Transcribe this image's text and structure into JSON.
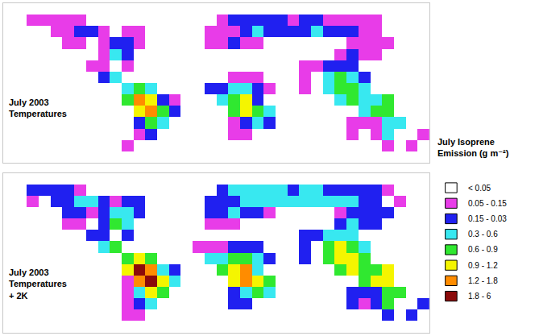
{
  "chart_data": [
    {
      "type": "heatmap",
      "title": [
        "July 2003",
        "Temperatures"
      ],
      "x": [
        -175,
        -165,
        -155,
        -145,
        -135,
        -125,
        -115,
        -105,
        -95,
        -85,
        -75,
        -65,
        -55,
        -45,
        -35,
        -25,
        -15,
        -5,
        5,
        15,
        25,
        35,
        45,
        55,
        65,
        75,
        85,
        95,
        105,
        115,
        125,
        135,
        145,
        155,
        165,
        175
      ],
      "y": [
        75,
        65,
        55,
        45,
        35,
        25,
        15,
        5,
        -5,
        -15,
        -25,
        -35,
        -45,
        -55
      ],
      "xlim": [
        -180,
        180
      ],
      "ylim": [
        -60,
        80
      ],
      "tick_labels": false,
      "cells": [
        [
          null,
          null,
          0,
          0,
          null,
          0,
          0,
          0,
          0,
          0,
          0,
          null,
          0,
          0,
          0,
          0,
          null,
          null,
          null,
          0,
          null,
          null,
          null,
          0,
          0,
          0,
          0,
          0,
          0,
          0,
          0,
          0,
          0,
          null,
          0,
          0
        ],
        [
          0,
          0,
          1,
          1,
          1,
          1,
          1,
          0,
          0,
          null,
          0,
          0,
          null,
          0,
          0,
          null,
          0,
          null,
          1,
          2,
          2,
          2,
          2,
          2,
          1,
          2,
          2,
          1,
          1,
          1,
          1,
          1,
          0,
          0,
          0,
          0
        ],
        [
          null,
          null,
          0,
          null,
          1,
          1,
          2,
          2,
          1,
          0,
          1,
          1,
          null,
          null,
          null,
          null,
          null,
          1,
          1,
          1,
          2,
          3,
          2,
          2,
          2,
          2,
          3,
          2,
          2,
          2,
          1,
          1,
          null,
          0,
          null,
          null
        ],
        [
          null,
          null,
          null,
          null,
          null,
          1,
          1,
          0,
          1,
          2,
          2,
          1,
          null,
          null,
          null,
          null,
          null,
          1,
          1,
          2,
          1,
          1,
          0,
          0,
          0,
          0,
          0,
          0,
          0,
          1,
          1,
          1,
          1,
          null,
          null,
          null
        ],
        [
          null,
          null,
          null,
          null,
          null,
          0,
          0,
          0,
          1,
          3,
          2,
          null,
          null,
          null,
          null,
          null,
          null,
          0,
          0,
          0,
          0,
          0,
          0,
          0,
          0,
          0,
          0,
          0,
          1,
          2,
          1,
          1,
          null,
          null,
          null,
          null
        ],
        [
          null,
          null,
          null,
          null,
          null,
          null,
          0,
          1,
          1,
          null,
          1,
          null,
          null,
          null,
          null,
          null,
          0,
          0,
          0,
          0,
          0,
          0,
          0,
          0,
          0,
          1,
          1,
          2,
          2,
          2,
          null,
          null,
          null,
          null,
          null,
          null
        ],
        [
          null,
          null,
          null,
          null,
          null,
          null,
          null,
          null,
          2,
          3,
          null,
          null,
          null,
          null,
          null,
          null,
          0,
          0,
          0,
          1,
          1,
          1,
          0,
          null,
          null,
          1,
          null,
          3,
          4,
          3,
          2,
          null,
          null,
          null,
          null,
          null
        ],
        [
          null,
          null,
          null,
          null,
          null,
          null,
          null,
          null,
          null,
          null,
          3,
          4,
          3,
          null,
          null,
          null,
          null,
          2,
          2,
          3,
          3,
          2,
          1,
          null,
          null,
          1,
          null,
          3,
          4,
          4,
          3,
          null,
          null,
          null,
          null,
          null
        ],
        [
          null,
          null,
          null,
          null,
          null,
          null,
          null,
          null,
          null,
          null,
          4,
          6,
          5,
          2,
          1,
          null,
          null,
          null,
          3,
          4,
          5,
          2,
          null,
          null,
          null,
          null,
          null,
          null,
          3,
          4,
          3,
          3,
          4,
          null,
          null,
          null
        ],
        [
          null,
          null,
          null,
          null,
          null,
          null,
          null,
          null,
          null,
          null,
          0,
          5,
          6,
          4,
          2,
          null,
          null,
          null,
          null,
          4,
          5,
          4,
          3,
          null,
          null,
          null,
          null,
          null,
          null,
          null,
          3,
          4,
          4,
          null,
          null,
          null
        ],
        [
          null,
          null,
          null,
          null,
          null,
          null,
          null,
          null,
          null,
          null,
          0,
          2,
          4,
          3,
          null,
          null,
          null,
          null,
          null,
          1,
          2,
          3,
          2,
          null,
          null,
          null,
          null,
          null,
          null,
          1,
          1,
          1,
          3,
          3,
          null,
          null
        ],
        [
          null,
          null,
          null,
          null,
          null,
          null,
          null,
          null,
          null,
          null,
          0,
          1,
          2,
          null,
          null,
          null,
          null,
          null,
          null,
          1,
          1,
          null,
          null,
          null,
          null,
          null,
          null,
          null,
          null,
          1,
          0,
          1,
          3,
          null,
          null,
          1
        ],
        [
          null,
          null,
          null,
          null,
          null,
          null,
          null,
          null,
          null,
          null,
          1,
          0,
          null,
          null,
          null,
          null,
          null,
          null,
          null,
          null,
          null,
          null,
          null,
          null,
          null,
          null,
          null,
          null,
          null,
          null,
          null,
          null,
          1,
          null,
          1,
          null
        ],
        [
          null,
          null,
          null,
          null,
          null,
          null,
          null,
          null,
          null,
          null,
          0,
          0,
          null,
          null,
          null,
          null,
          null,
          null,
          null,
          null,
          null,
          null,
          null,
          null,
          null,
          null,
          null,
          null,
          null,
          null,
          null,
          null,
          null,
          null,
          null,
          null
        ]
      ]
    },
    {
      "type": "heatmap",
      "title": [
        "July 2003",
        "Temperatures",
        "+ 2K"
      ],
      "x": [
        -175,
        -165,
        -155,
        -145,
        -135,
        -125,
        -115,
        -105,
        -95,
        -85,
        -75,
        -65,
        -55,
        -45,
        -35,
        -25,
        -15,
        -5,
        5,
        15,
        25,
        35,
        45,
        55,
        65,
        75,
        85,
        95,
        105,
        115,
        125,
        135,
        145,
        155,
        165,
        175
      ],
      "y": [
        75,
        65,
        55,
        45,
        35,
        25,
        15,
        5,
        -5,
        -15,
        -25,
        -35,
        -45,
        -55
      ],
      "xlim": [
        -180,
        180
      ],
      "ylim": [
        -60,
        80
      ],
      "tick_labels": false,
      "cells": [
        [
          null,
          null,
          0,
          0,
          null,
          0,
          0,
          0,
          0,
          0,
          0,
          null,
          0,
          0,
          0,
          0,
          null,
          null,
          null,
          0,
          null,
          null,
          null,
          0,
          0,
          0,
          0,
          0,
          0,
          0,
          0,
          0,
          0,
          null,
          0,
          0
        ],
        [
          0,
          0,
          2,
          2,
          2,
          2,
          1,
          0,
          0,
          null,
          0,
          0,
          null,
          0,
          0,
          null,
          0,
          null,
          2,
          3,
          3,
          3,
          3,
          3,
          2,
          3,
          3,
          2,
          2,
          2,
          2,
          2,
          1,
          0,
          0,
          0
        ],
        [
          null,
          null,
          1,
          null,
          2,
          2,
          3,
          3,
          2,
          1,
          2,
          2,
          null,
          null,
          null,
          null,
          null,
          2,
          2,
          2,
          3,
          3,
          3,
          3,
          3,
          3,
          3,
          3,
          3,
          3,
          2,
          2,
          null,
          1,
          null,
          null
        ],
        [
          null,
          null,
          null,
          null,
          null,
          2,
          2,
          1,
          2,
          3,
          3,
          2,
          null,
          null,
          null,
          null,
          null,
          2,
          2,
          3,
          2,
          2,
          1,
          0,
          0,
          0,
          0,
          0,
          1,
          2,
          2,
          2,
          2,
          null,
          null,
          null
        ],
        [
          null,
          null,
          null,
          null,
          null,
          1,
          1,
          0,
          2,
          4,
          3,
          null,
          null,
          null,
          null,
          null,
          null,
          1,
          1,
          1,
          0,
          0,
          0,
          0,
          0,
          0,
          0,
          0,
          2,
          3,
          2,
          2,
          null,
          null,
          null,
          null
        ],
        [
          null,
          null,
          null,
          null,
          null,
          null,
          0,
          2,
          2,
          null,
          2,
          null,
          null,
          null,
          null,
          null,
          0,
          0,
          0,
          0,
          0,
          0,
          0,
          0,
          0,
          2,
          2,
          3,
          3,
          3,
          null,
          null,
          null,
          null,
          null,
          null
        ],
        [
          null,
          null,
          null,
          null,
          null,
          null,
          null,
          null,
          3,
          4,
          null,
          null,
          null,
          null,
          null,
          null,
          1,
          1,
          1,
          2,
          2,
          2,
          0,
          null,
          null,
          2,
          null,
          4,
          5,
          4,
          3,
          null,
          null,
          null,
          null,
          null
        ],
        [
          null,
          null,
          null,
          null,
          null,
          null,
          null,
          null,
          null,
          null,
          4,
          5,
          4,
          null,
          null,
          null,
          null,
          3,
          3,
          4,
          4,
          3,
          2,
          null,
          null,
          2,
          null,
          4,
          5,
          5,
          4,
          null,
          null,
          null,
          null,
          null
        ],
        [
          null,
          null,
          null,
          null,
          null,
          null,
          null,
          null,
          null,
          null,
          5,
          7,
          6,
          3,
          2,
          null,
          null,
          null,
          4,
          5,
          6,
          3,
          null,
          null,
          null,
          null,
          null,
          null,
          4,
          5,
          4,
          4,
          5,
          null,
          null,
          null
        ],
        [
          null,
          null,
          null,
          null,
          null,
          null,
          null,
          null,
          null,
          null,
          1,
          6,
          7,
          5,
          3,
          null,
          null,
          null,
          null,
          5,
          6,
          5,
          4,
          null,
          null,
          null,
          null,
          null,
          null,
          null,
          4,
          5,
          5,
          null,
          null,
          null
        ],
        [
          null,
          null,
          null,
          null,
          null,
          null,
          null,
          null,
          null,
          null,
          1,
          3,
          5,
          4,
          null,
          null,
          null,
          null,
          null,
          2,
          3,
          4,
          3,
          null,
          null,
          null,
          null,
          null,
          null,
          2,
          2,
          2,
          4,
          4,
          null,
          null
        ],
        [
          null,
          null,
          null,
          null,
          null,
          null,
          null,
          null,
          null,
          null,
          1,
          2,
          3,
          null,
          null,
          null,
          null,
          null,
          null,
          2,
          2,
          null,
          null,
          null,
          null,
          null,
          null,
          null,
          null,
          2,
          1,
          2,
          4,
          null,
          null,
          2
        ],
        [
          null,
          null,
          null,
          null,
          null,
          null,
          null,
          null,
          null,
          null,
          1,
          1,
          null,
          null,
          null,
          null,
          null,
          null,
          null,
          null,
          null,
          null,
          null,
          null,
          null,
          null,
          null,
          null,
          null,
          null,
          null,
          null,
          2,
          null,
          2,
          null
        ],
        [
          null,
          null,
          null,
          null,
          null,
          null,
          null,
          null,
          null,
          null,
          0,
          0,
          null,
          null,
          null,
          null,
          null,
          null,
          null,
          null,
          null,
          null,
          null,
          null,
          null,
          null,
          null,
          null,
          null,
          null,
          null,
          null,
          null,
          null,
          null,
          null
        ]
      ]
    }
  ],
  "color_key": {
    "title": [
      "July Isoprene",
      "Emission (g m⁻²)"
    ],
    "labels": [
      "< 0.05",
      "0.05 - 0.15",
      "0.15 - 0.03",
      "0.3 - 0.6",
      "0.6 - 0.9",
      "0.9 - 1.2",
      "1.2 - 1.8",
      "1.8 - 6"
    ],
    "colors": [
      "#ffffff",
      "#e83ce8",
      "#2020f0",
      "#38e8f0",
      "#30e830",
      "#f5f500",
      "#ff8c00",
      "#8b0a0a"
    ]
  }
}
